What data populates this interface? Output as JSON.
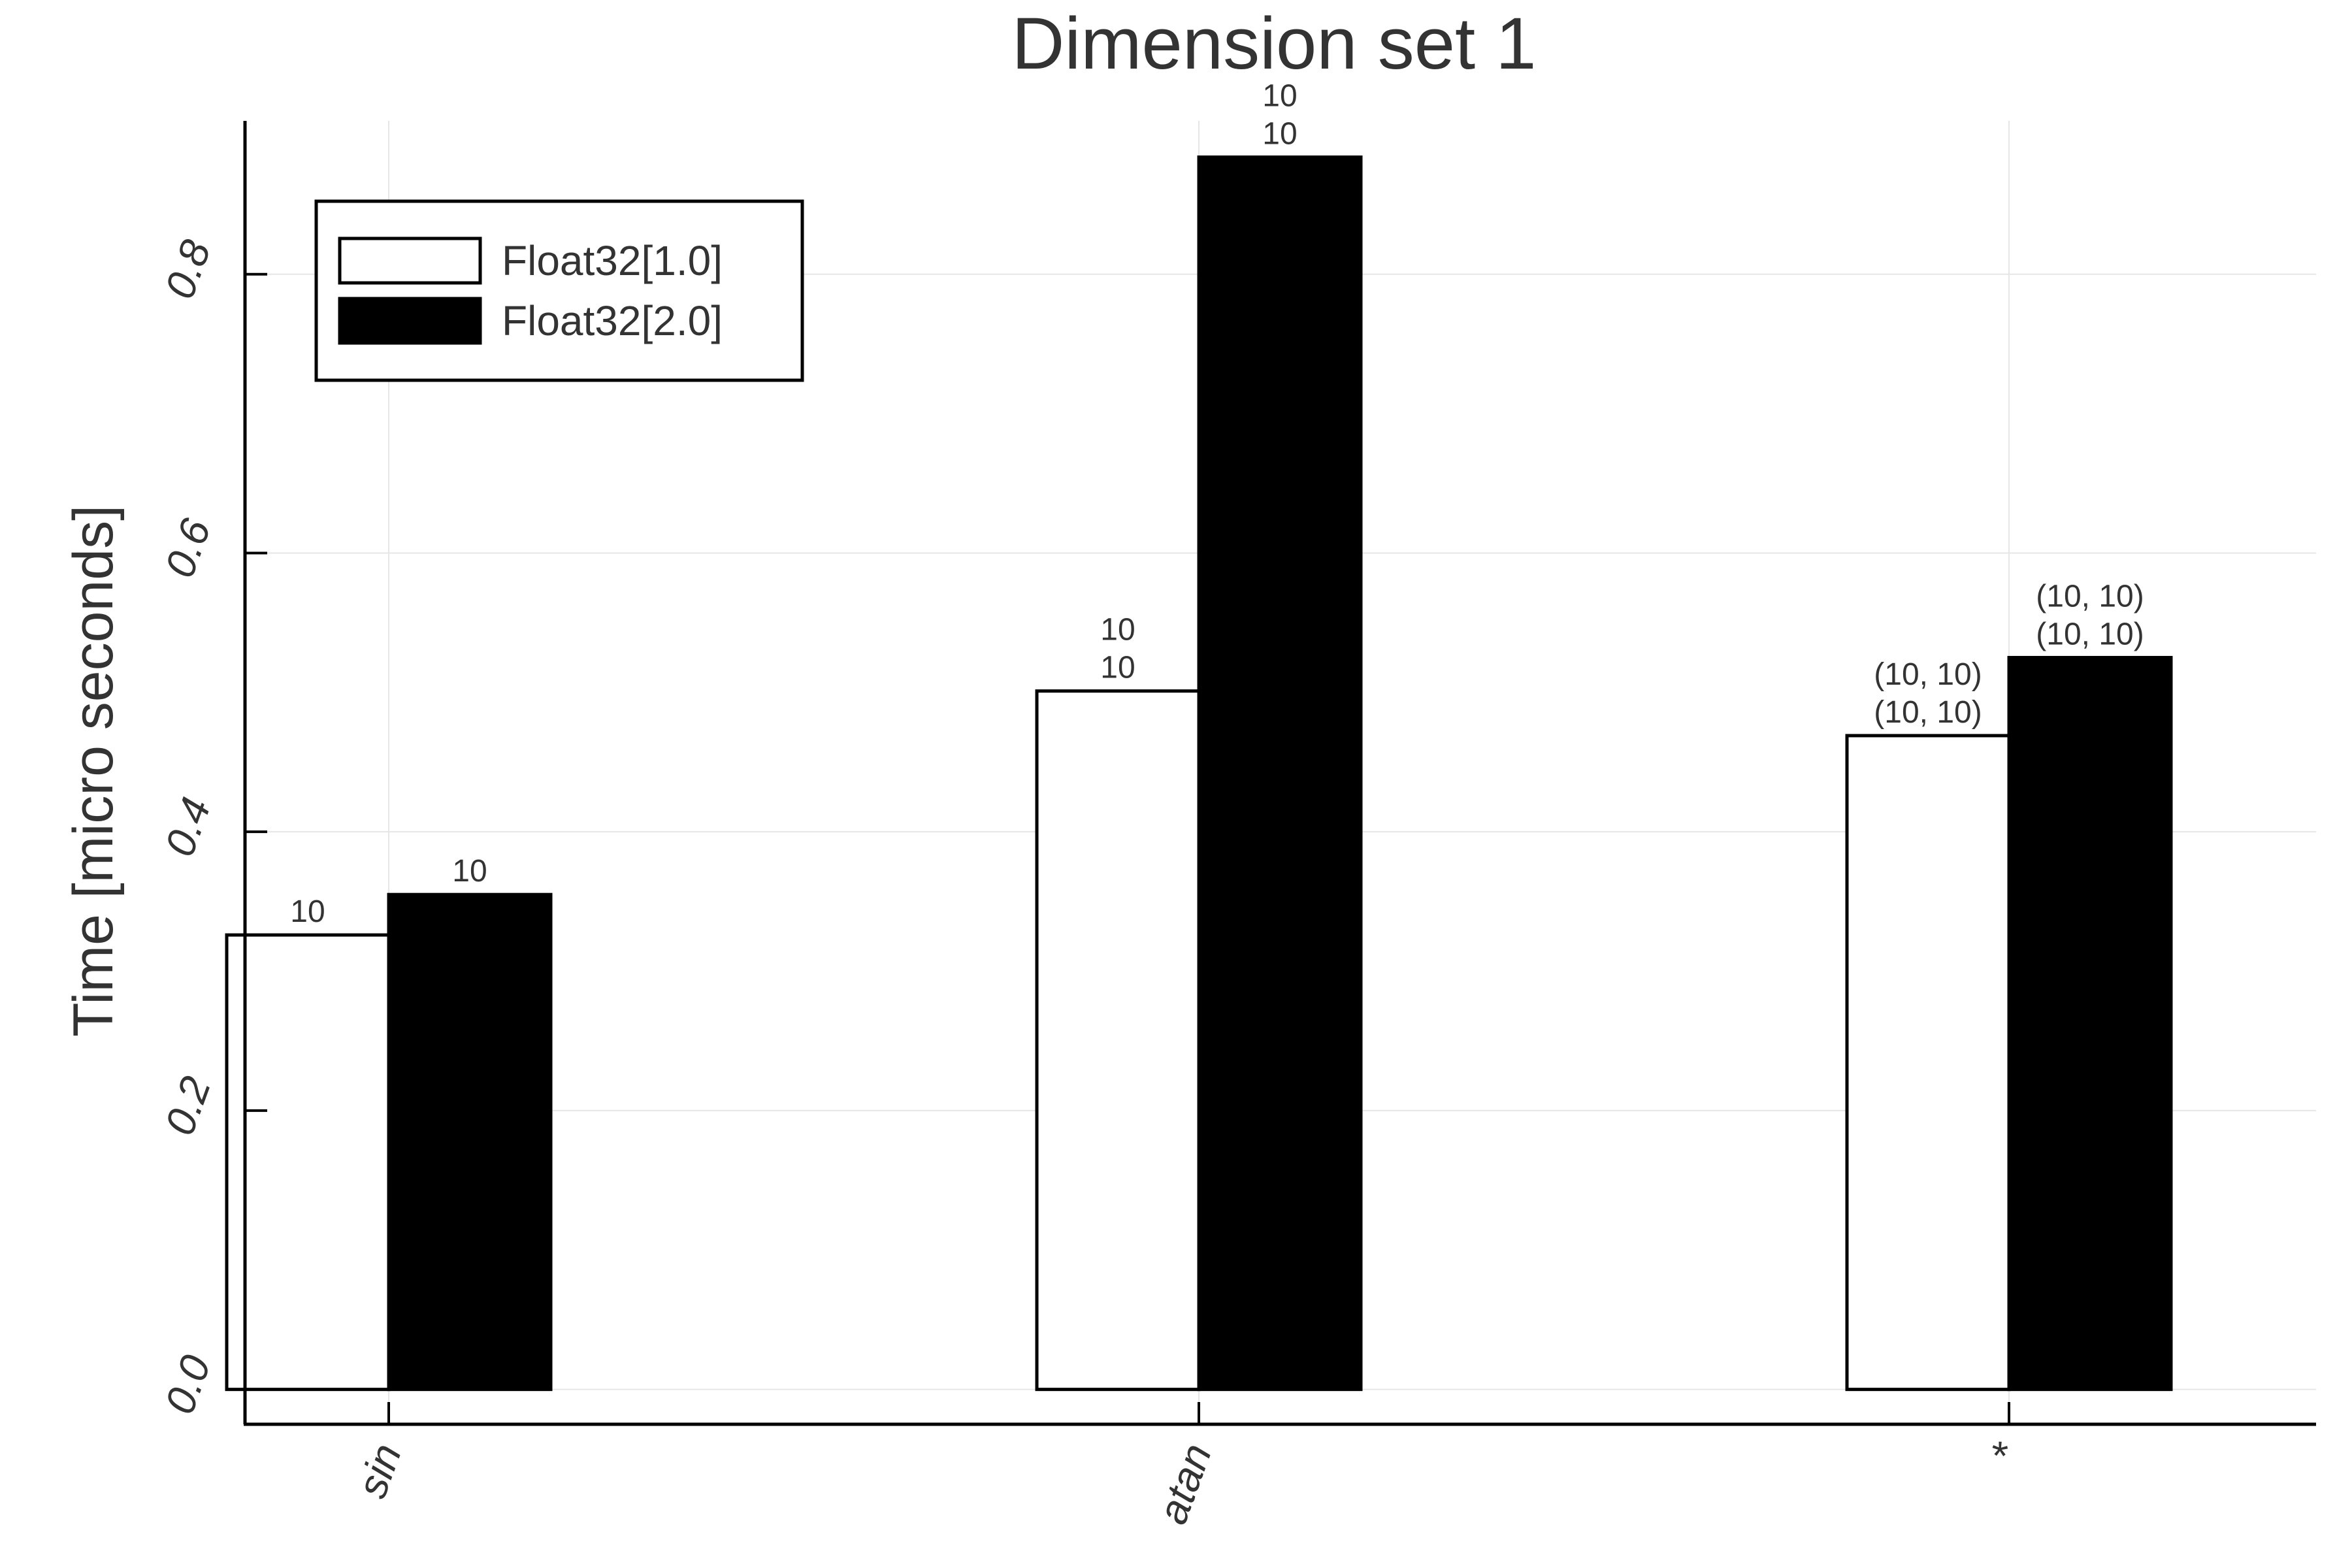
{
  "chart_data": {
    "type": "bar",
    "title": "Dimension set 1",
    "xlabel": "",
    "ylabel": "Time [micro seconds]",
    "categories": [
      "sin",
      "atan",
      "*"
    ],
    "series": [
      {
        "name": "Float32[1.0]",
        "color": "#ffffff",
        "values": [
          0.326,
          0.501,
          0.469
        ],
        "labels": [
          [
            "10"
          ],
          [
            "10",
            "10"
          ],
          [
            "(10, 10)",
            "(10, 10)"
          ]
        ]
      },
      {
        "name": "Float32[2.0]",
        "color": "#000000",
        "values": [
          0.355,
          0.884,
          0.525
        ],
        "labels": [
          [
            "10"
          ],
          [
            "10",
            "10"
          ],
          [
            "(10, 10)",
            "(10, 10)"
          ]
        ]
      }
    ],
    "yticks": [
      0.0,
      0.2,
      0.4,
      0.6,
      0.8
    ],
    "ytick_labels": [
      "0.0",
      "0.2",
      "0.4",
      "0.6",
      "0.8"
    ],
    "ylim": [
      -0.025,
      0.91
    ],
    "grid": true,
    "legend_position": "top-left"
  }
}
